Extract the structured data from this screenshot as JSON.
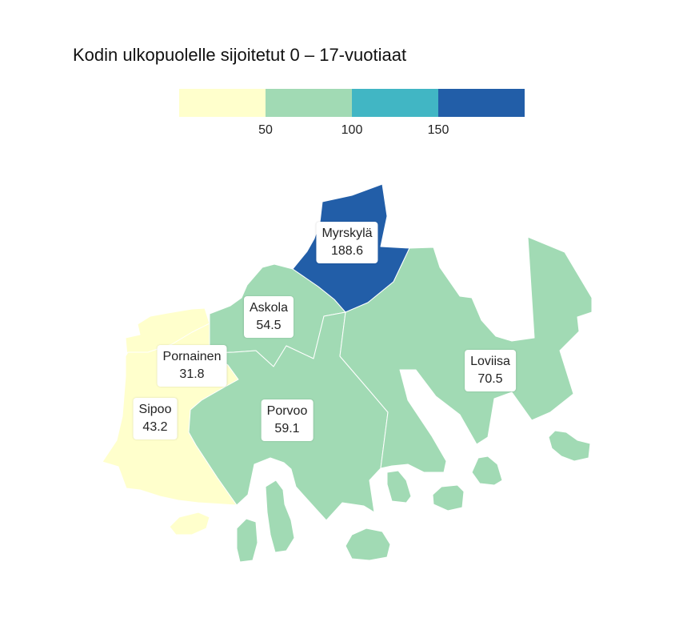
{
  "title": "Kodin ulkopuolelle sijoitetut 0 – 17-vuotiaat",
  "legend": {
    "colors": [
      "#ffffcc",
      "#a1dab4",
      "#41b6c4",
      "#225ea8"
    ],
    "ticks": [
      "50",
      "100",
      "150"
    ]
  },
  "regions": {
    "myrskyla": {
      "name": "Myrskylä",
      "value": "188.6",
      "color": "#225ea8"
    },
    "askola": {
      "name": "Askola",
      "value": "54.5",
      "color": "#a1dab4"
    },
    "pornainen": {
      "name": "Pornainen",
      "value": "31.8",
      "color": "#ffffcc"
    },
    "sipoo": {
      "name": "Sipoo",
      "value": "43.2",
      "color": "#ffffcc"
    },
    "porvoo": {
      "name": "Porvoo",
      "value": "59.1",
      "color": "#a1dab4"
    },
    "loviisa": {
      "name": "Loviisa",
      "value": "70.5",
      "color": "#a1dab4"
    }
  }
}
